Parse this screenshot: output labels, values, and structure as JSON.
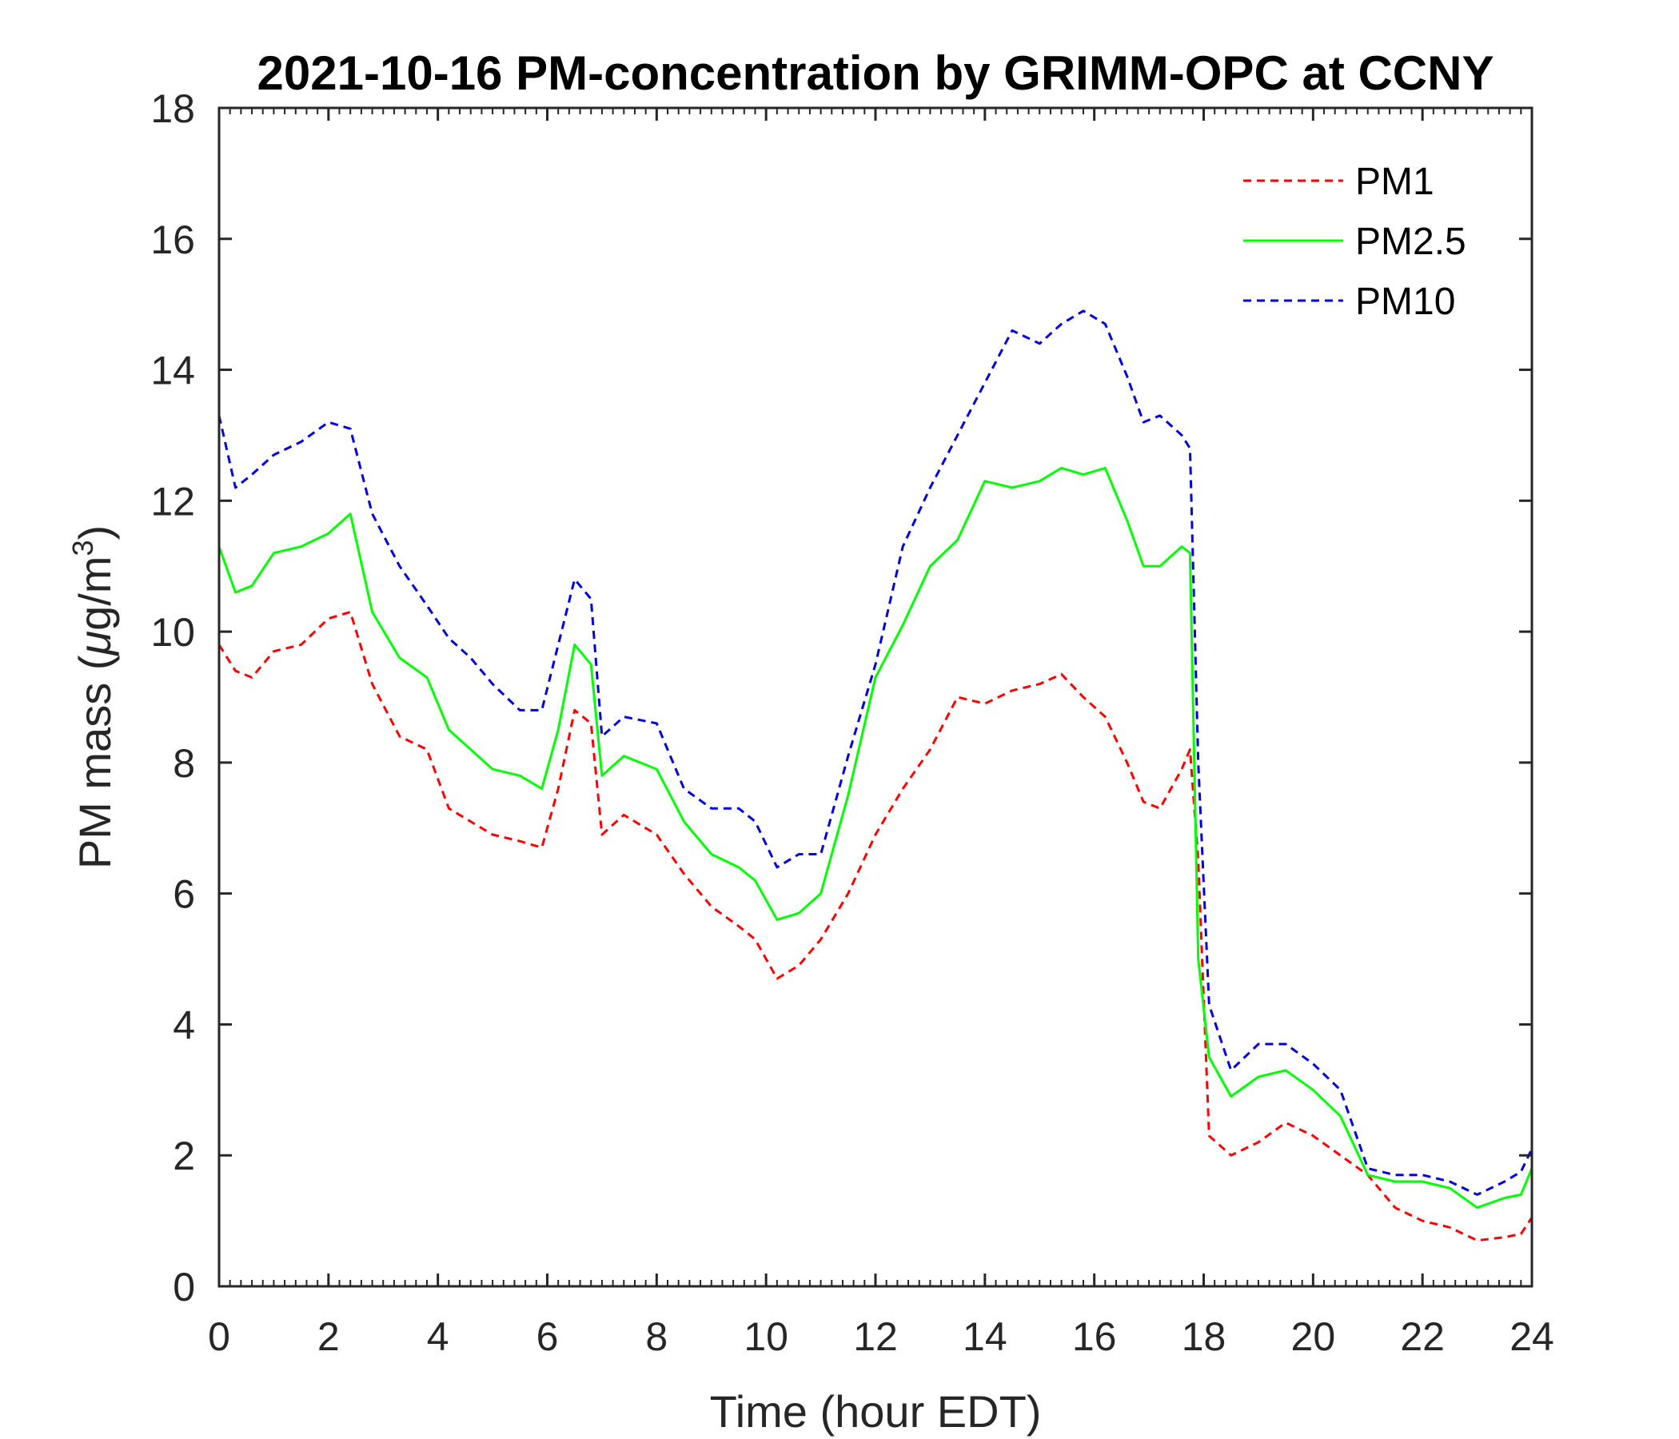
{
  "chart_data": {
    "type": "line",
    "title": "2021-10-16 PM-concentration by GRIMM-OPC at CCNY",
    "xlabel": "Time (hour EDT)",
    "ylabel_prefix": "PM mass (",
    "ylabel_mu": "μ",
    "ylabel_unit": "g/m",
    "ylabel_sup": "3",
    "ylabel_suffix": ")",
    "xlim": [
      0,
      24
    ],
    "ylim": [
      0,
      18
    ],
    "xticks": [
      "0",
      "2",
      "4",
      "6",
      "8",
      "10",
      "12",
      "14",
      "16",
      "18",
      "20",
      "22",
      "24"
    ],
    "yticks": [
      "0",
      "2",
      "4",
      "6",
      "8",
      "10",
      "12",
      "14",
      "16",
      "18"
    ],
    "legend_position": "top-right",
    "series": [
      {
        "name": "PM1",
        "color": "#ff0000",
        "style": "dashed",
        "x": [
          0,
          0.3,
          0.6,
          1,
          1.5,
          2,
          2.4,
          2.8,
          3.3,
          3.8,
          4.2,
          4.6,
          5,
          5.5,
          5.9,
          6.2,
          6.5,
          6.8,
          7,
          7.4,
          8,
          8.5,
          9,
          9.5,
          9.8,
          10.2,
          10.6,
          11,
          11.5,
          12,
          12.5,
          13,
          13.5,
          14,
          14.5,
          15,
          15.4,
          15.8,
          16.2,
          16.6,
          16.9,
          17.2,
          17.6,
          17.75,
          17.9,
          18.1,
          18.5,
          19,
          19.5,
          20,
          20.5,
          21,
          21.5,
          22,
          22.5,
          23,
          23.5,
          23.8,
          24
        ],
        "values": [
          9.8,
          9.4,
          9.3,
          9.7,
          9.8,
          10.2,
          10.3,
          9.2,
          8.4,
          8.2,
          7.3,
          7.1,
          6.9,
          6.8,
          6.7,
          7.6,
          8.8,
          8.6,
          6.9,
          7.2,
          6.9,
          6.3,
          5.8,
          5.5,
          5.3,
          4.7,
          4.9,
          5.3,
          6.0,
          6.9,
          7.6,
          8.2,
          9.0,
          8.9,
          9.1,
          9.2,
          9.35,
          9.0,
          8.7,
          8.0,
          7.4,
          7.3,
          7.9,
          8.2,
          6.5,
          2.3,
          2.0,
          2.2,
          2.5,
          2.3,
          2.0,
          1.7,
          1.2,
          1.0,
          0.9,
          0.7,
          0.75,
          0.8,
          1.05
        ]
      },
      {
        "name": "PM2.5",
        "color": "#00ff00",
        "style": "solid",
        "x": [
          0,
          0.3,
          0.6,
          1,
          1.5,
          2,
          2.4,
          2.8,
          3.3,
          3.8,
          4.2,
          4.6,
          5,
          5.5,
          5.9,
          6.2,
          6.5,
          6.8,
          7,
          7.4,
          8,
          8.5,
          9,
          9.5,
          9.8,
          10.2,
          10.6,
          11,
          11.5,
          12,
          12.5,
          13,
          13.5,
          14,
          14.5,
          15,
          15.4,
          15.8,
          16.2,
          16.6,
          16.9,
          17.2,
          17.6,
          17.75,
          17.9,
          18.1,
          18.5,
          19,
          19.5,
          20,
          20.5,
          21,
          21.5,
          22,
          22.5,
          23,
          23.5,
          23.8,
          24
        ],
        "values": [
          11.3,
          10.6,
          10.7,
          11.2,
          11.3,
          11.5,
          11.8,
          10.3,
          9.6,
          9.3,
          8.5,
          8.2,
          7.9,
          7.8,
          7.6,
          8.5,
          9.8,
          9.5,
          7.8,
          8.1,
          7.9,
          7.1,
          6.6,
          6.4,
          6.2,
          5.6,
          5.7,
          6.0,
          7.5,
          9.3,
          10.1,
          11.0,
          11.4,
          12.3,
          12.2,
          12.3,
          12.5,
          12.4,
          12.5,
          11.7,
          11.0,
          11.0,
          11.3,
          11.2,
          5.0,
          3.5,
          2.9,
          3.2,
          3.3,
          3.0,
          2.6,
          1.7,
          1.6,
          1.6,
          1.5,
          1.2,
          1.35,
          1.4,
          1.8
        ]
      },
      {
        "name": "PM10",
        "color": "#0000dd",
        "style": "dashed",
        "x": [
          0,
          0.3,
          0.6,
          1,
          1.5,
          2,
          2.4,
          2.8,
          3.3,
          3.8,
          4.2,
          4.6,
          5,
          5.5,
          5.9,
          6.2,
          6.5,
          6.8,
          7,
          7.4,
          8,
          8.5,
          9,
          9.5,
          9.8,
          10.2,
          10.6,
          11,
          11.5,
          12,
          12.5,
          13,
          13.5,
          14,
          14.5,
          15,
          15.4,
          15.8,
          16.2,
          16.6,
          16.9,
          17.2,
          17.6,
          17.75,
          17.9,
          18.1,
          18.5,
          19,
          19.5,
          20,
          20.5,
          21,
          21.5,
          22,
          22.5,
          23,
          23.5,
          23.8,
          24
        ],
        "values": [
          13.3,
          12.2,
          12.4,
          12.7,
          12.9,
          13.2,
          13.1,
          11.8,
          11.0,
          10.4,
          9.9,
          9.6,
          9.2,
          8.8,
          8.8,
          9.8,
          10.8,
          10.5,
          8.4,
          8.7,
          8.6,
          7.6,
          7.3,
          7.3,
          7.1,
          6.4,
          6.6,
          6.6,
          8.1,
          9.5,
          11.3,
          12.2,
          13.0,
          13.8,
          14.6,
          14.4,
          14.7,
          14.9,
          14.7,
          13.9,
          13.2,
          13.3,
          13.0,
          12.8,
          8.0,
          4.3,
          3.3,
          3.7,
          3.7,
          3.4,
          3.0,
          1.8,
          1.7,
          1.7,
          1.6,
          1.4,
          1.6,
          1.75,
          2.1
        ]
      }
    ]
  }
}
